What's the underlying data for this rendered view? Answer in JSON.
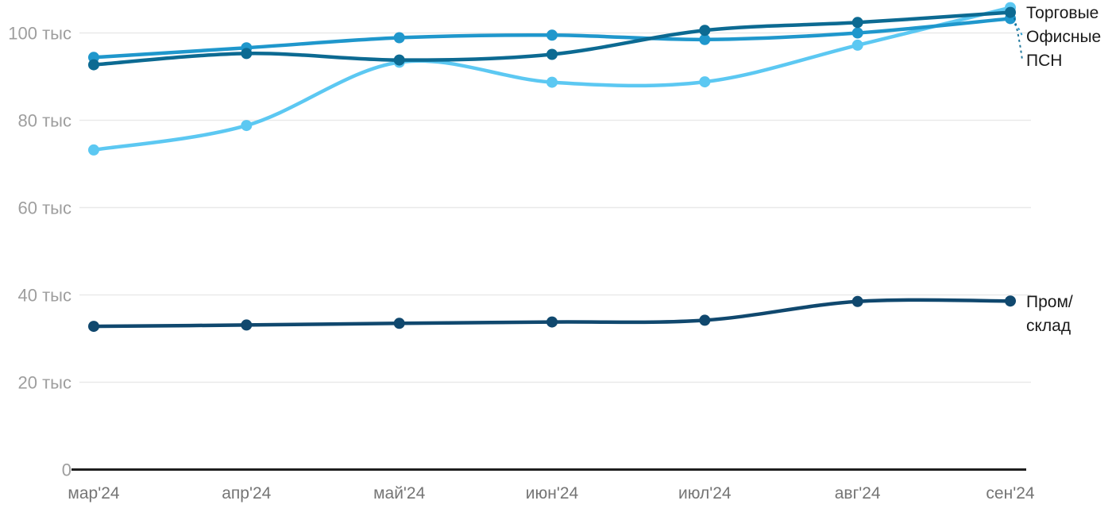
{
  "chart_data": {
    "type": "line",
    "title": "",
    "unit": "тыс",
    "categories": [
      "мар'24",
      "апр'24",
      "май'24",
      "июн'24",
      "июл'24",
      "авг'24",
      "сен'24"
    ],
    "series": [
      {
        "name": "Торговые",
        "color": "#5CC8F2",
        "values": [
          73.2,
          78.8,
          93.3,
          88.7,
          88.8,
          97.2,
          105.8
        ]
      },
      {
        "name": "Офисные",
        "color": "#1F97CC",
        "values": [
          94.4,
          96.6,
          98.9,
          99.5,
          98.5,
          100.0,
          103.3
        ]
      },
      {
        "name": "ПСН",
        "color": "#0C6A92",
        "values": [
          92.7,
          95.3,
          93.8,
          95.1,
          100.6,
          102.4,
          104.7
        ]
      },
      {
        "name": "Пром/склад",
        "color": "#10486E",
        "label_lines": [
          "Пром/",
          "склад"
        ],
        "values": [
          32.8,
          33.1,
          33.5,
          33.8,
          34.2,
          38.5,
          38.6
        ]
      }
    ],
    "y_axis": {
      "range": [
        0,
        107
      ],
      "gridlines": true,
      "ticks": [
        {
          "value": 0,
          "label": "0"
        },
        {
          "value": 20,
          "label": "20 тыс"
        },
        {
          "value": 40,
          "label": "40 тыс"
        },
        {
          "value": 60,
          "label": "60 тыс"
        },
        {
          "value": 80,
          "label": "80 тыс"
        },
        {
          "value": 100,
          "label": "100 тыс"
        }
      ]
    },
    "x_axis": {
      "labels": [
        "мар'24",
        "апр'24",
        "май'24",
        "июн'24",
        "июл'24",
        "авг'24",
        "сен'24"
      ]
    },
    "legend_position": "right-end-labels",
    "colors": {
      "background": "#FFFFFF",
      "grid": "#E9E9E9",
      "axis_line": "#1F1F1F",
      "y_tick_text": "#9E9E9E",
      "x_tick_text": "#757575",
      "end_label_text": "#1A1A1A"
    }
  }
}
